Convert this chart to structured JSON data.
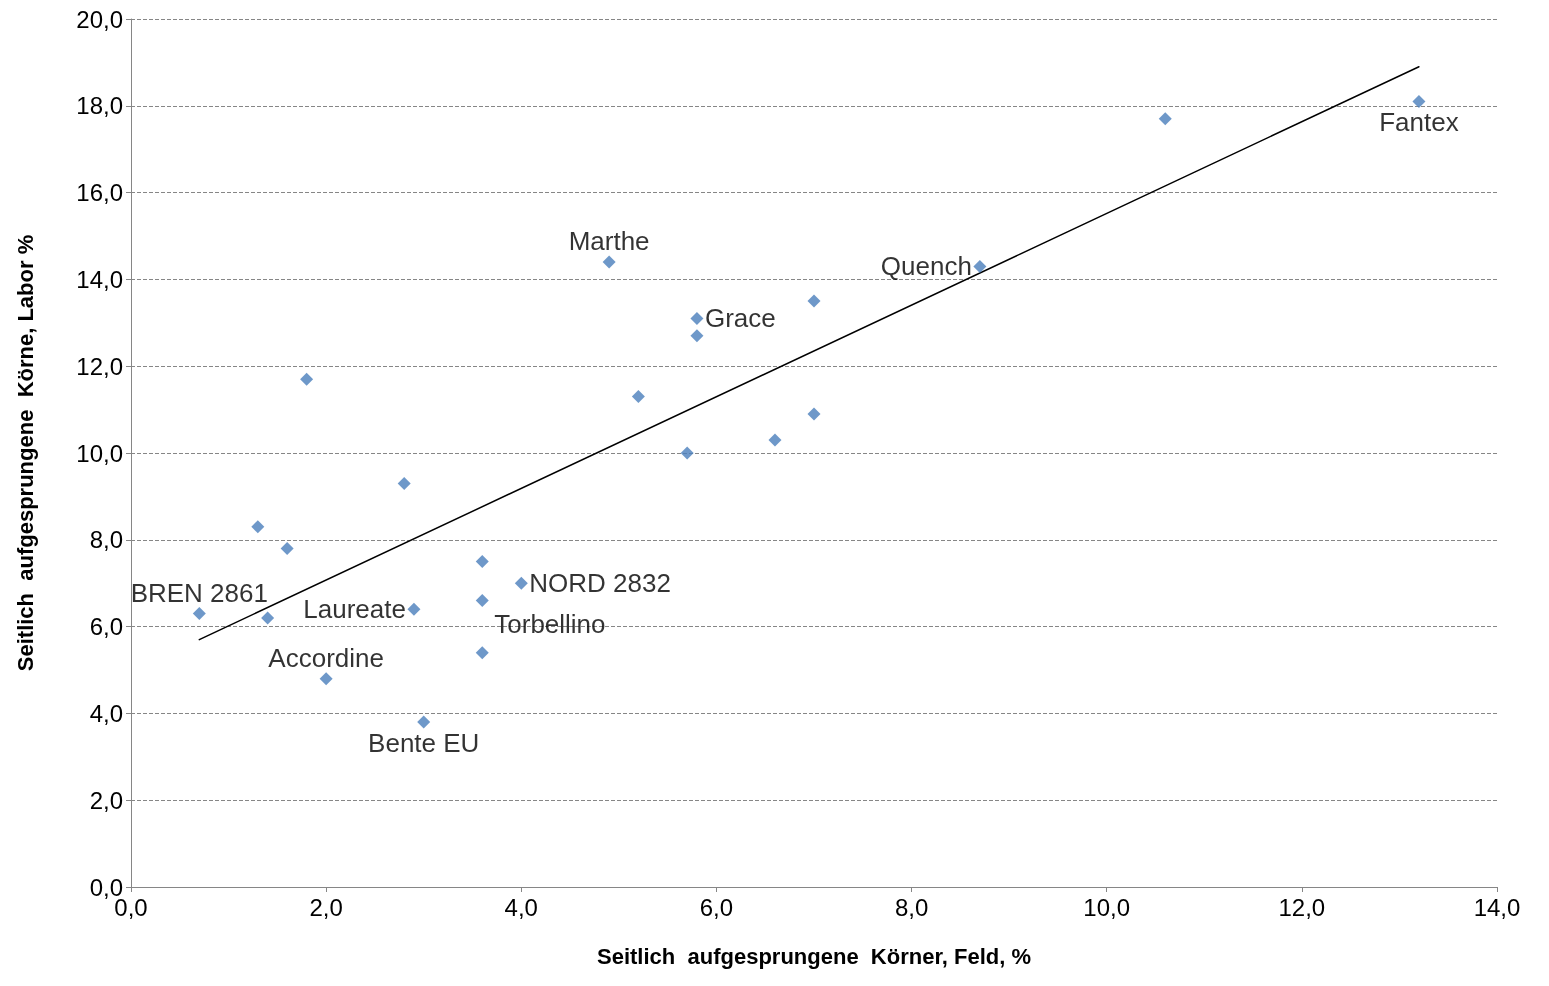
{
  "chart_data": {
    "type": "scatter",
    "xlabel": "Seitlich  aufgesprungene  Körner, Feld, %",
    "ylabel": "Seitlich  aufgesprungene  Körne, Labor %",
    "xlim": [
      0,
      14
    ],
    "ylim": [
      0,
      20
    ],
    "xticks": [
      {
        "value": 0,
        "label": "0,0"
      },
      {
        "value": 2,
        "label": "2,0"
      },
      {
        "value": 4,
        "label": "4,0"
      },
      {
        "value": 6,
        "label": "6,0"
      },
      {
        "value": 8,
        "label": "8,0"
      },
      {
        "value": 10,
        "label": "10,0"
      },
      {
        "value": 12,
        "label": "12,0"
      },
      {
        "value": 14,
        "label": "14,0"
      }
    ],
    "yticks": [
      {
        "value": 0,
        "label": "0,0"
      },
      {
        "value": 2,
        "label": "2,0"
      },
      {
        "value": 4,
        "label": "4,0"
      },
      {
        "value": 6,
        "label": "6,0"
      },
      {
        "value": 8,
        "label": "8,0"
      },
      {
        "value": 10,
        "label": "10,0"
      },
      {
        "value": 12,
        "label": "12,0"
      },
      {
        "value": 14,
        "label": "14,0"
      },
      {
        "value": 16,
        "label": "16,0"
      },
      {
        "value": 18,
        "label": "18,0"
      },
      {
        "value": 20,
        "label": "20,0"
      }
    ],
    "grid": "y",
    "marker": "diamond",
    "series": [
      {
        "color": "#4a7ebb",
        "x": [
          0.7,
          1.3,
          1.4,
          1.6,
          1.8,
          2.0,
          2.8,
          2.9,
          3.0,
          3.6,
          3.6,
          3.6,
          4.0,
          4.9,
          5.2,
          5.7,
          5.8,
          5.8,
          6.6,
          7.0,
          7.0,
          8.7,
          10.6,
          13.2
        ],
        "values": [
          6.3,
          8.3,
          6.2,
          7.8,
          11.7,
          4.8,
          9.3,
          6.4,
          3.8,
          7.5,
          6.6,
          5.4,
          7.0,
          14.4,
          11.3,
          10.0,
          13.1,
          12.7,
          10.3,
          13.5,
          10.9,
          14.3,
          17.7,
          18.1
        ]
      },
      {
        "type": "line",
        "color": "#000000",
        "marker": "none",
        "x": [
          0.7,
          13.2
        ],
        "values": [
          5.7,
          18.9
        ]
      }
    ],
    "annotations": [
      {
        "text": "BREN 2861",
        "x": 0.7,
        "y": 6.3
      },
      {
        "text": "Accordine",
        "x": 2.0,
        "y": 4.8
      },
      {
        "text": "Laureate",
        "x": 2.9,
        "y": 6.4
      },
      {
        "text": "Bente EU",
        "x": 3.0,
        "y": 3.8
      },
      {
        "text": "NORD 2832",
        "x": 4.0,
        "y": 7.0
      },
      {
        "text": "Torbellino",
        "x": 3.6,
        "y": 6.6
      },
      {
        "text": "Marthe",
        "x": 4.9,
        "y": 14.4
      },
      {
        "text": "Grace",
        "x": 5.8,
        "y": 13.1
      },
      {
        "text": "Quench",
        "x": 8.7,
        "y": 14.3
      },
      {
        "text": "Fantex",
        "x": 13.2,
        "y": 18.1
      }
    ]
  }
}
